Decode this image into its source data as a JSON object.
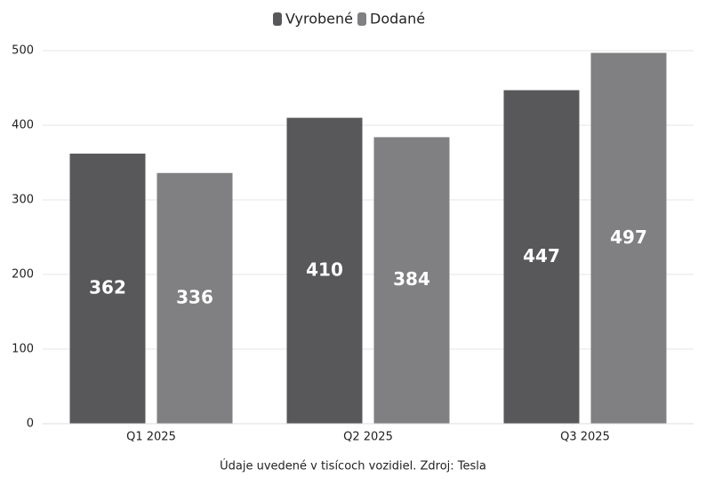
{
  "chart_data": {
    "type": "bar",
    "categories": [
      "Q1 2025",
      "Q2 2025",
      "Q3 2025"
    ],
    "series": [
      {
        "name": "Vyrobené",
        "color": "#58585a",
        "values": [
          362,
          410,
          447
        ]
      },
      {
        "name": "Dodané",
        "color": "#808082",
        "values": [
          336,
          384,
          497
        ]
      }
    ],
    "ylim": [
      0,
      500
    ],
    "yticks": [
      0,
      100,
      200,
      300,
      400,
      500
    ],
    "grid": true,
    "legend": "top",
    "note": "Údaje uvedené v tisícoch vozidiel. Zdroj: Tesla"
  }
}
